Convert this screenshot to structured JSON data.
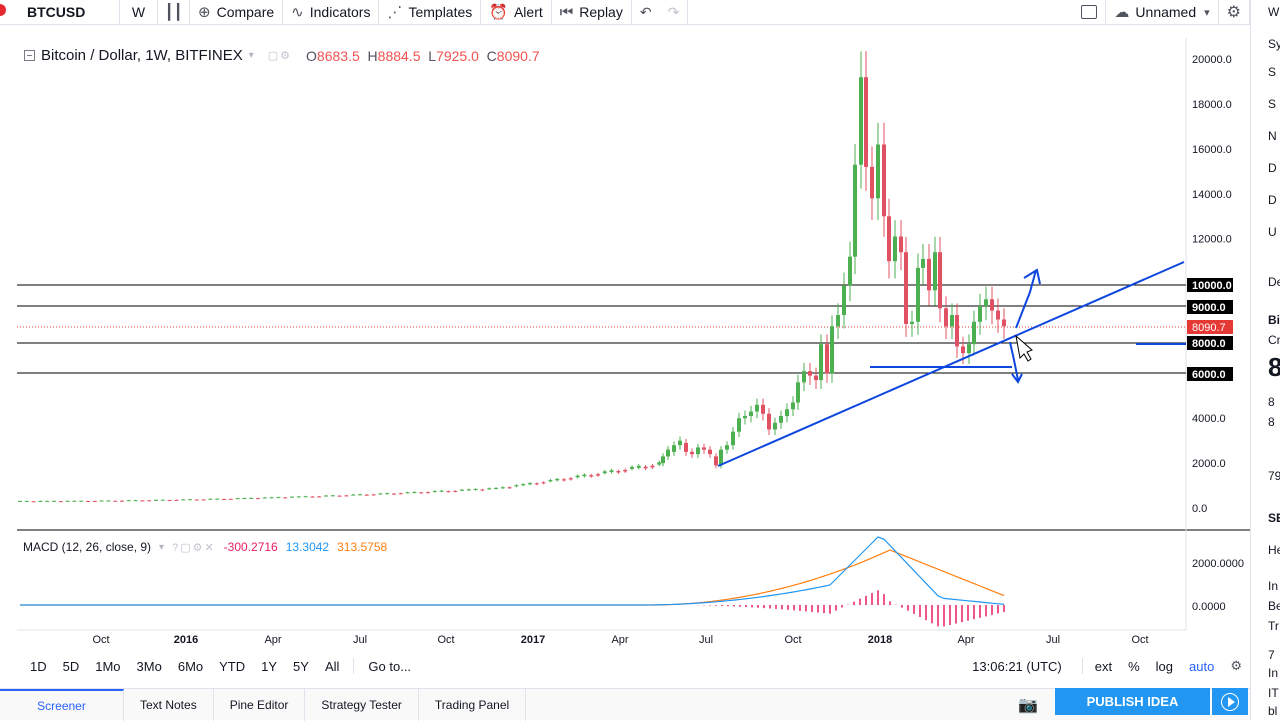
{
  "topbar": {
    "symbol": "BTCUSD",
    "interval": "W",
    "compare": "Compare",
    "indicators": "Indicators",
    "templates": "Templates",
    "alert": "Alert",
    "replay": "Replay",
    "layout_name": "Unnamed"
  },
  "legend": {
    "title": "Bitcoin / Dollar, 1W, BITFINEX",
    "o_label": "O",
    "o_val": "8683.5",
    "h_label": "H",
    "h_val": "8884.5",
    "l_label": "L",
    "l_val": "7925.0",
    "c_label": "C",
    "c_val": "8090.7"
  },
  "macd": {
    "title": "MACD (12, 26, close, 9)",
    "hist": "-300.2716",
    "macd_val": "13.3042",
    "signal": "313.5758"
  },
  "colors": {
    "up": "#26a69a",
    "down": "#ef5350",
    "up_candle": "#4caf50",
    "down_candle": "#e05263",
    "macd_line": "#2196f3",
    "signal_line": "#ff7f0e",
    "annotation": "#0d47e0"
  },
  "price_scale": {
    "ticks": [
      "20000.0",
      "18000.0",
      "16000.0",
      "14000.0",
      "12000.0",
      "4000.0",
      "2000.0",
      "0.0"
    ],
    "labels": [
      {
        "text": "10000.0",
        "kind": "line"
      },
      {
        "text": "9000.0",
        "kind": "line"
      },
      {
        "text": "8090.7",
        "kind": "last"
      },
      {
        "text": "8000.0",
        "kind": "line"
      },
      {
        "text": "6000.0",
        "kind": "line"
      }
    ]
  },
  "macd_scale": [
    "2000.0000",
    "0.0000"
  ],
  "time_axis": [
    "Oct",
    "2016",
    "Apr",
    "Jul",
    "Oct",
    "2017",
    "Apr",
    "Jul",
    "Oct",
    "2018",
    "Apr",
    "Jul",
    "Oct"
  ],
  "timeframes": [
    "1D",
    "5D",
    "1Mo",
    "3Mo",
    "6Mo",
    "YTD",
    "1Y",
    "5Y",
    "All"
  ],
  "goto": "Go to...",
  "clock": "13:06:21 (UTC)",
  "scale_opts": [
    "ext",
    "%",
    "log",
    "auto"
  ],
  "tabs": [
    "Screener",
    "Text Notes",
    "Pine Editor",
    "Strategy Tester",
    "Trading Panel"
  ],
  "publish": "PUBLISH IDEA",
  "right_panel": [
    "W",
    "Sy",
    "S",
    "S",
    "N",
    "D",
    "D",
    "U",
    "De",
    "Bi",
    "Cr",
    "8",
    "8",
    "8",
    "79",
    "SE",
    "He",
    "In",
    "Be",
    "Tr",
    "7",
    "In",
    "IT",
    "bl"
  ]
}
